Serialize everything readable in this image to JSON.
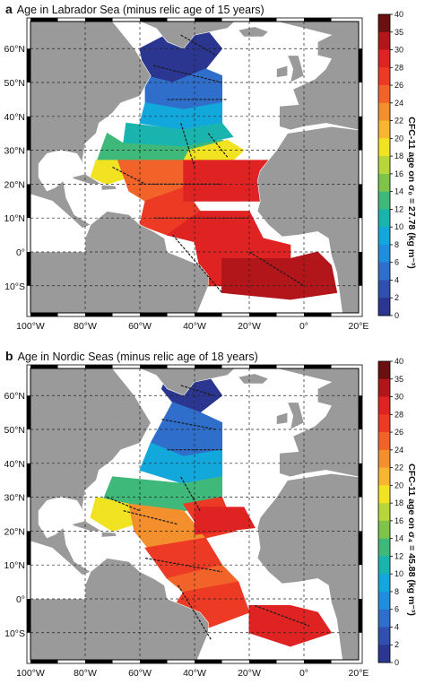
{
  "panels": [
    {
      "letter": "a",
      "title": "Age in Labrador Sea (minus relic age of 15 years)",
      "colorbar_label": "CFC-11 age on σ₀ = 27.78 (kg m⁻³)"
    },
    {
      "letter": "b",
      "title": "Age in Nordic Seas (minus relic age of 18 years)",
      "colorbar_label": "CFC-11 age on σ₄ = 45.88 (kg m⁻³)"
    }
  ],
  "lat_labels": [
    "60°N",
    "50°N",
    "40°N",
    "30°N",
    "20°N",
    "10°N",
    "0°",
    "10°S"
  ],
  "lon_labels": [
    "100°W",
    "80°W",
    "60°W",
    "40°W",
    "20°W",
    "0°",
    "20°E"
  ],
  "colorbar": {
    "ticks": [
      "40",
      "35",
      "30",
      "28",
      "26",
      "24",
      "22",
      "20",
      "18",
      "16",
      "14",
      "12",
      "10",
      "8",
      "6",
      "4",
      "2",
      "0"
    ],
    "colors": [
      "#6b1010",
      "#b3161a",
      "#df2323",
      "#ec3a24",
      "#f2632a",
      "#f48f2e",
      "#f6b62f",
      "#f1e321",
      "#b7d63a",
      "#7ec34a",
      "#3fb97a",
      "#19b4ad",
      "#12a8dc",
      "#1f8ede",
      "#2f6fcb",
      "#3050b0",
      "#2a3690"
    ]
  },
  "colors": {
    "land": "#9a9a9a",
    "ocean": "#ffffff"
  }
}
